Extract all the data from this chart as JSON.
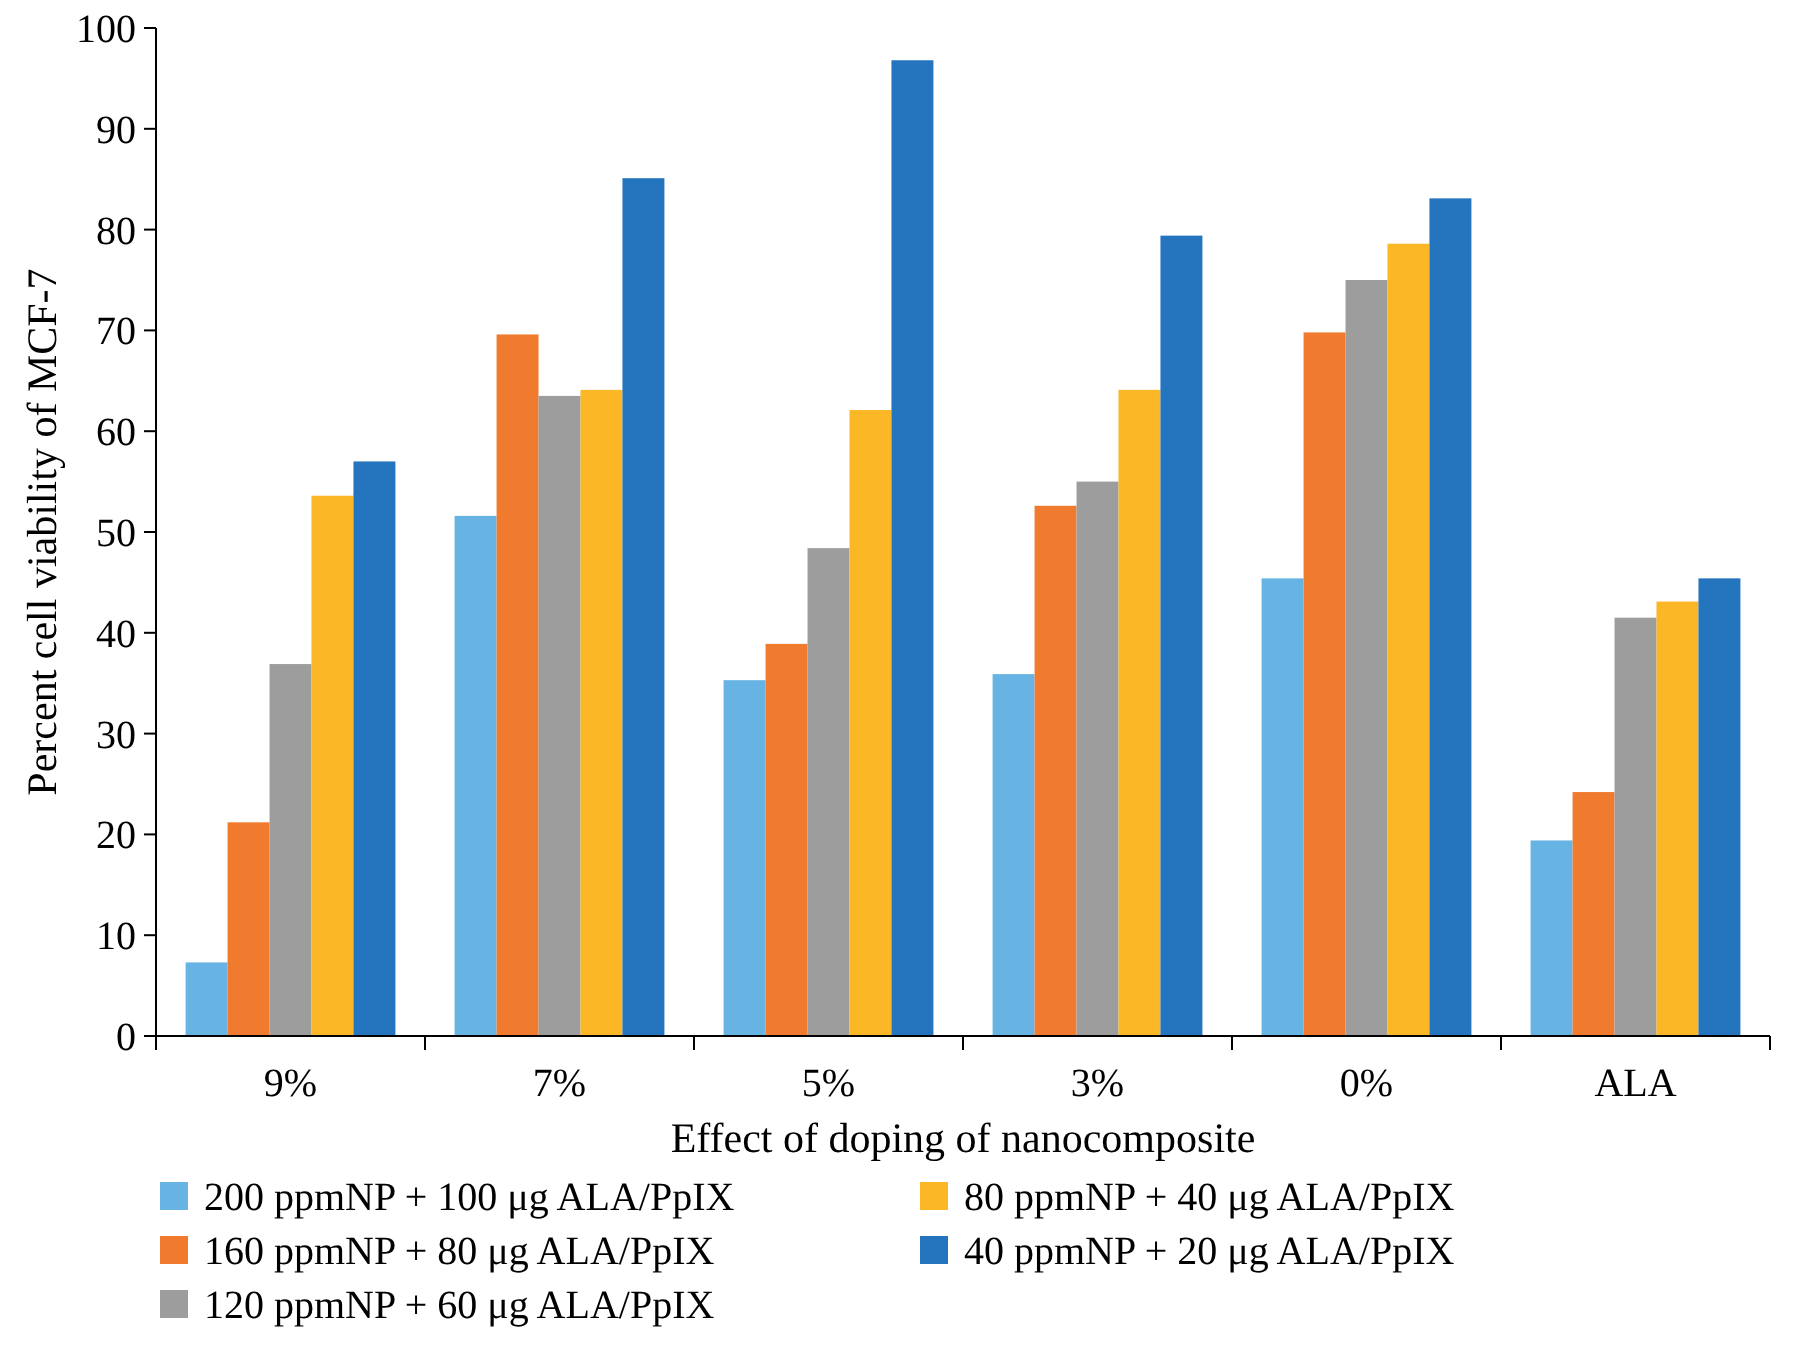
{
  "chart_data": {
    "type": "bar",
    "xlabel": "Effect of doping of nanocomposite",
    "ylabel": "Percent cell viability of MCF-7",
    "categories": [
      "9%",
      "7%",
      "5%",
      "3%",
      "0%",
      "ALA"
    ],
    "series": [
      {
        "name": "200 ppmNP + 100 μg ALA/PpIX",
        "color": "#67b3e3",
        "values": [
          7.3,
          51.6,
          35.3,
          35.9,
          45.4,
          19.4
        ]
      },
      {
        "name": "160 ppmNP + 80 μg ALA/PpIX",
        "color": "#f07b2f",
        "values": [
          21.2,
          69.6,
          38.9,
          52.6,
          69.8,
          24.2
        ]
      },
      {
        "name": "120 ppmNP + 60 μg ALA/PpIX",
        "color": "#9d9d9d",
        "values": [
          36.9,
          63.5,
          48.4,
          55,
          75,
          41.5
        ]
      },
      {
        "name": "80 ppmNP + 40 μg ALA/PpIX",
        "color": "#fbb726",
        "values": [
          53.6,
          64.1,
          62.1,
          64.1,
          78.6,
          43.1
        ]
      },
      {
        "name": "40 ppmNP + 20 μg ALA/PpIX",
        "color": "#2474be",
        "values": [
          57,
          85.1,
          96.8,
          79.4,
          83.1,
          45.4
        ]
      }
    ],
    "ylim": [
      0,
      100
    ],
    "yticks": [
      0,
      10,
      20,
      30,
      40,
      50,
      60,
      70,
      80,
      90,
      100
    ],
    "grid": false,
    "legend": "bottom"
  }
}
